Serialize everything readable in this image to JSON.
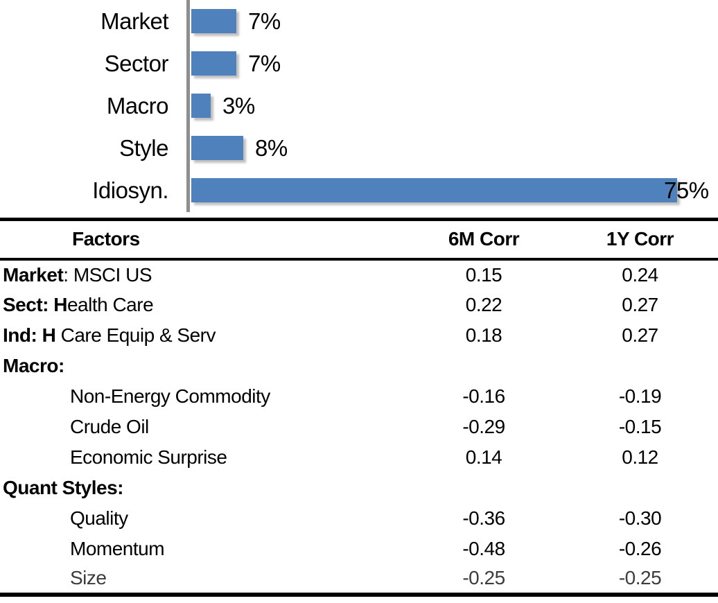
{
  "colors": {
    "bar_fill": "#4F81BD",
    "axis_line": "#8e8e8e",
    "text": "#000000",
    "table_rule": "#000000"
  },
  "chart_data": [
    {
      "type": "bar",
      "orientation": "horizontal",
      "title": "",
      "categories": [
        "Market",
        "Sector",
        "Macro",
        "Style",
        "Idiosyn."
      ],
      "values": [
        7,
        7,
        3,
        8,
        75
      ],
      "value_labels": [
        "7%",
        "7%",
        "3%",
        "8%",
        "75%"
      ],
      "unit": "%",
      "xlim": [
        0,
        80
      ],
      "grid": false,
      "legend": false,
      "bar_color": "#4F81BD"
    },
    {
      "type": "table",
      "columns": [
        "Factors",
        "6M Corr",
        "1Y Corr"
      ],
      "rows": [
        {
          "label_bold": "Market",
          "label_rest": ": MSCI US",
          "indent": false,
          "light": false,
          "corr_6m": "0.15",
          "corr_1y": "0.24"
        },
        {
          "label_bold": "Sect: H",
          "label_rest": "ealth Care",
          "indent": false,
          "light": false,
          "corr_6m": "0.22",
          "corr_1y": "0.27"
        },
        {
          "label_bold": "Ind: H",
          "label_rest": " Care Equip & Serv",
          "indent": false,
          "light": false,
          "corr_6m": "0.18",
          "corr_1y": "0.27"
        },
        {
          "label_bold": "Macro:",
          "label_rest": "",
          "indent": false,
          "light": false,
          "corr_6m": "",
          "corr_1y": ""
        },
        {
          "label_bold": "",
          "label_rest": "Non-Energy Commodity",
          "indent": true,
          "light": false,
          "corr_6m": "-0.16",
          "corr_1y": "-0.19"
        },
        {
          "label_bold": "",
          "label_rest": "Crude Oil",
          "indent": true,
          "light": false,
          "corr_6m": "-0.29",
          "corr_1y": "-0.15"
        },
        {
          "label_bold": "",
          "label_rest": "Economic Surprise",
          "indent": true,
          "light": false,
          "corr_6m": "0.14",
          "corr_1y": "0.12"
        },
        {
          "label_bold": "Quant Styles:",
          "label_rest": "",
          "indent": false,
          "light": false,
          "corr_6m": "",
          "corr_1y": ""
        },
        {
          "label_bold": "",
          "label_rest": "Quality",
          "indent": true,
          "light": false,
          "corr_6m": "-0.36",
          "corr_1y": "-0.30"
        },
        {
          "label_bold": "",
          "label_rest": "Momentum",
          "indent": true,
          "light": false,
          "corr_6m": "-0.48",
          "corr_1y": "-0.26"
        },
        {
          "label_bold": "",
          "label_rest": "Size",
          "indent": true,
          "light": true,
          "corr_6m": "-0.25",
          "corr_1y": "-0.25"
        }
      ]
    }
  ]
}
